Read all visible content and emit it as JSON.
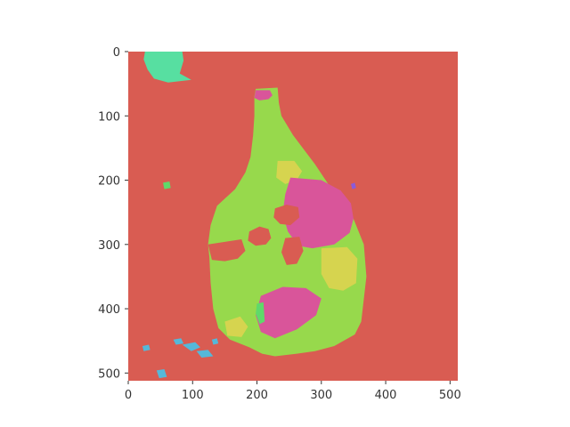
{
  "chart_data": {
    "type": "heatmap",
    "title": "",
    "xlabel": "",
    "ylabel": "",
    "xlim": [
      0,
      512
    ],
    "ylim": [
      512,
      0
    ],
    "grid": false,
    "x_ticks": [
      {
        "value": 0,
        "label": "0"
      },
      {
        "value": 100,
        "label": "100"
      },
      {
        "value": 200,
        "label": "200"
      },
      {
        "value": 300,
        "label": "300"
      },
      {
        "value": 400,
        "label": "400"
      },
      {
        "value": 500,
        "label": "500"
      }
    ],
    "y_ticks": [
      {
        "value": 0,
        "label": "0"
      },
      {
        "value": 100,
        "label": "100"
      },
      {
        "value": 200,
        "label": "200"
      },
      {
        "value": 300,
        "label": "300"
      },
      {
        "value": 400,
        "label": "400"
      },
      {
        "value": 500,
        "label": "500"
      }
    ],
    "colors": {
      "background": "#d95c52",
      "bottle": "#97d94c",
      "magenta": "#d9559a",
      "yellow": "#d6d44f",
      "green": "#5fd96a",
      "teal": "#57dfa1",
      "cyan": "#55b8d9",
      "purple": "#8a5bd9"
    },
    "regions": [
      {
        "label": "bottle",
        "color": "bottle",
        "points": [
          [
            198,
            58
          ],
          [
            232,
            56
          ],
          [
            234,
            80
          ],
          [
            238,
            100
          ],
          [
            256,
            130
          ],
          [
            290,
            175
          ],
          [
            320,
            220
          ],
          [
            350,
            260
          ],
          [
            366,
            300
          ],
          [
            370,
            350
          ],
          [
            362,
            420
          ],
          [
            352,
            440
          ],
          [
            320,
            458
          ],
          [
            290,
            466
          ],
          [
            262,
            470
          ],
          [
            228,
            474
          ],
          [
            208,
            470
          ],
          [
            188,
            460
          ],
          [
            158,
            448
          ],
          [
            140,
            430
          ],
          [
            132,
            400
          ],
          [
            128,
            360
          ],
          [
            126,
            320
          ],
          [
            124,
            300
          ],
          [
            128,
            270
          ],
          [
            138,
            240
          ],
          [
            166,
            214
          ],
          [
            182,
            188
          ],
          [
            190,
            164
          ],
          [
            194,
            130
          ],
          [
            196,
            100
          ],
          [
            196,
            70
          ]
        ]
      },
      {
        "label": "magenta-top",
        "color": "magenta",
        "points": [
          [
            198,
            60
          ],
          [
            220,
            60
          ],
          [
            224,
            68
          ],
          [
            218,
            74
          ],
          [
            204,
            76
          ],
          [
            196,
            72
          ]
        ]
      },
      {
        "label": "yellow-upper",
        "color": "yellow",
        "points": [
          [
            232,
            170
          ],
          [
            258,
            170
          ],
          [
            270,
            186
          ],
          [
            262,
            200
          ],
          [
            244,
            206
          ],
          [
            230,
            196
          ]
        ]
      },
      {
        "label": "magenta-right",
        "color": "magenta",
        "points": [
          [
            252,
            196
          ],
          [
            300,
            200
          ],
          [
            330,
            216
          ],
          [
            346,
            236
          ],
          [
            350,
            260
          ],
          [
            344,
            282
          ],
          [
            320,
            300
          ],
          [
            286,
            306
          ],
          [
            264,
            302
          ],
          [
            248,
            280
          ],
          [
            240,
            252
          ],
          [
            244,
            222
          ]
        ]
      },
      {
        "label": "red-hole-1",
        "color": "background",
        "points": [
          [
            228,
            244
          ],
          [
            246,
            238
          ],
          [
            264,
            242
          ],
          [
            266,
            258
          ],
          [
            252,
            270
          ],
          [
            236,
            268
          ],
          [
            226,
            258
          ]
        ]
      },
      {
        "label": "red-hole-2",
        "color": "background",
        "points": [
          [
            188,
            280
          ],
          [
            204,
            272
          ],
          [
            218,
            276
          ],
          [
            222,
            290
          ],
          [
            214,
            300
          ],
          [
            198,
            302
          ],
          [
            186,
            294
          ]
        ]
      },
      {
        "label": "red-hole-3",
        "color": "background",
        "points": [
          [
            244,
            290
          ],
          [
            266,
            288
          ],
          [
            272,
            310
          ],
          [
            262,
            330
          ],
          [
            246,
            332
          ],
          [
            238,
            312
          ]
        ]
      },
      {
        "label": "red-notch-left",
        "color": "background",
        "points": [
          [
            124,
            300
          ],
          [
            150,
            296
          ],
          [
            176,
            292
          ],
          [
            182,
            310
          ],
          [
            170,
            322
          ],
          [
            150,
            326
          ],
          [
            130,
            324
          ]
        ]
      },
      {
        "label": "yellow-right",
        "color": "yellow",
        "points": [
          [
            300,
            306
          ],
          [
            340,
            304
          ],
          [
            356,
            322
          ],
          [
            354,
            360
          ],
          [
            334,
            372
          ],
          [
            312,
            368
          ],
          [
            300,
            346
          ]
        ]
      },
      {
        "label": "magenta-lower",
        "color": "magenta",
        "points": [
          [
            206,
            380
          ],
          [
            240,
            366
          ],
          [
            276,
            368
          ],
          [
            300,
            384
          ],
          [
            292,
            410
          ],
          [
            262,
            432
          ],
          [
            228,
            446
          ],
          [
            206,
            436
          ],
          [
            198,
            410
          ]
        ]
      },
      {
        "label": "yellow-lower",
        "color": "yellow",
        "points": [
          [
            150,
            420
          ],
          [
            174,
            412
          ],
          [
            186,
            428
          ],
          [
            176,
            444
          ],
          [
            154,
            442
          ]
        ]
      },
      {
        "label": "green-strip",
        "color": "green",
        "points": [
          [
            200,
            392
          ],
          [
            210,
            390
          ],
          [
            212,
            420
          ],
          [
            204,
            424
          ],
          [
            198,
            408
          ]
        ]
      },
      {
        "label": "purple-spot",
        "color": "purple",
        "points": [
          [
            346,
            206
          ],
          [
            352,
            204
          ],
          [
            354,
            212
          ],
          [
            348,
            214
          ]
        ]
      },
      {
        "label": "teal-topleft",
        "color": "teal",
        "points": [
          [
            26,
            0
          ],
          [
            84,
            0
          ],
          [
            86,
            14
          ],
          [
            80,
            34
          ],
          [
            98,
            44
          ],
          [
            62,
            48
          ],
          [
            40,
            42
          ],
          [
            30,
            28
          ],
          [
            24,
            12
          ]
        ]
      },
      {
        "label": "green-spot",
        "color": "green",
        "points": [
          [
            54,
            204
          ],
          [
            64,
            202
          ],
          [
            66,
            212
          ],
          [
            56,
            214
          ]
        ]
      },
      {
        "label": "cyan-1",
        "color": "cyan",
        "points": [
          [
            70,
            448
          ],
          [
            82,
            446
          ],
          [
            86,
            454
          ],
          [
            74,
            456
          ]
        ]
      },
      {
        "label": "cyan-2",
        "color": "cyan",
        "points": [
          [
            84,
            456
          ],
          [
            104,
            452
          ],
          [
            112,
            460
          ],
          [
            98,
            466
          ]
        ]
      },
      {
        "label": "cyan-3",
        "color": "cyan",
        "points": [
          [
            106,
            466
          ],
          [
            124,
            464
          ],
          [
            132,
            474
          ],
          [
            114,
            476
          ]
        ]
      },
      {
        "label": "cyan-4",
        "color": "cyan",
        "points": [
          [
            22,
            458
          ],
          [
            32,
            456
          ],
          [
            34,
            464
          ],
          [
            24,
            466
          ]
        ]
      },
      {
        "label": "cyan-5",
        "color": "cyan",
        "points": [
          [
            44,
            496
          ],
          [
            56,
            494
          ],
          [
            60,
            506
          ],
          [
            48,
            508
          ]
        ]
      },
      {
        "label": "cyan-6",
        "color": "cyan",
        "points": [
          [
            130,
            448
          ],
          [
            138,
            446
          ],
          [
            140,
            454
          ],
          [
            132,
            456
          ]
        ]
      }
    ]
  }
}
